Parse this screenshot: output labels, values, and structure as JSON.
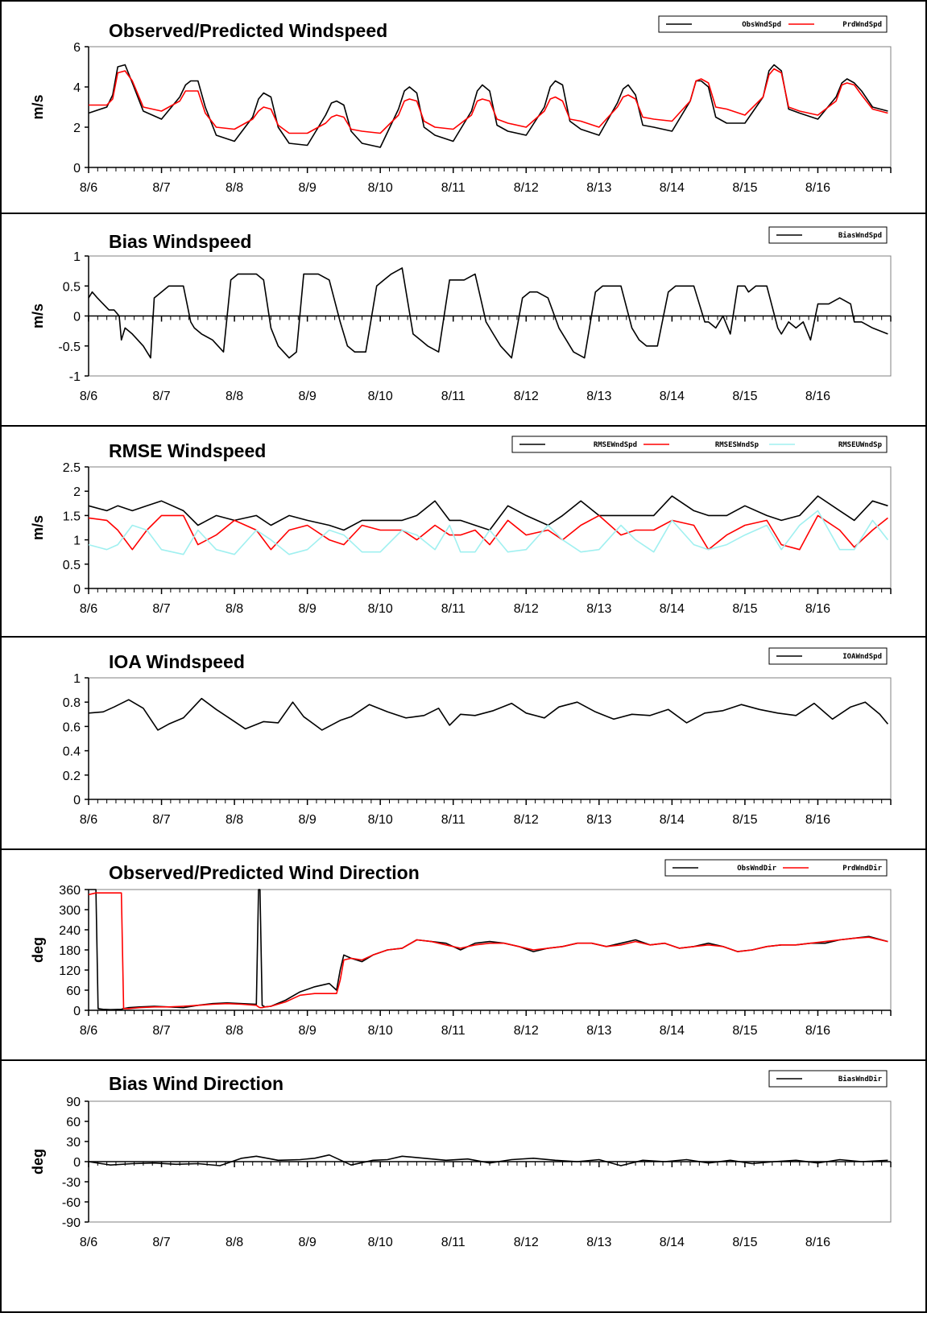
{
  "chart_data": [
    {
      "type": "line",
      "title": "Observed/Predicted Windspeed",
      "ylabel": "m/s",
      "ylim": [
        0,
        6
      ],
      "yticks": [
        "0",
        "2",
        "4",
        "6"
      ],
      "x_tick_labels": [
        "8/6",
        "8/7",
        "8/8",
        "8/9",
        "8/10",
        "8/11",
        "8/12",
        "8/13",
        "8/14",
        "8/15",
        "8/16"
      ],
      "x": [
        0,
        0.25,
        0.33,
        0.4,
        0.5,
        0.6,
        0.75,
        1.0,
        1.25,
        1.33,
        1.4,
        1.5,
        1.6,
        1.75,
        2.0,
        2.25,
        2.33,
        2.4,
        2.5,
        2.6,
        2.75,
        3.0,
        3.25,
        3.33,
        3.4,
        3.5,
        3.6,
        3.75,
        4.0,
        4.25,
        4.33,
        4.4,
        4.5,
        4.6,
        4.75,
        5.0,
        5.25,
        5.33,
        5.4,
        5.5,
        5.6,
        5.75,
        6.0,
        6.25,
        6.33,
        6.4,
        6.5,
        6.6,
        6.75,
        7.0,
        7.25,
        7.33,
        7.4,
        7.5,
        7.6,
        7.75,
        8.0,
        8.25,
        8.33,
        8.4,
        8.5,
        8.6,
        8.75,
        9.0,
        9.25,
        9.33,
        9.4,
        9.5,
        9.6,
        9.75,
        10.0,
        10.25,
        10.33,
        10.4,
        10.5,
        10.6,
        10.75,
        10.96
      ],
      "series": [
        {
          "name": "ObsWndSpd",
          "color": "#000000",
          "values": [
            2.7,
            3.0,
            3.6,
            5.0,
            5.1,
            4.2,
            2.8,
            2.4,
            3.5,
            4.1,
            4.3,
            4.3,
            3.0,
            1.6,
            1.3,
            2.5,
            3.4,
            3.7,
            3.5,
            2.0,
            1.2,
            1.1,
            2.6,
            3.2,
            3.3,
            3.1,
            1.8,
            1.2,
            1.0,
            2.9,
            3.8,
            4.0,
            3.7,
            2.0,
            1.6,
            1.3,
            2.8,
            3.8,
            4.1,
            3.8,
            2.1,
            1.8,
            1.6,
            3.0,
            4.0,
            4.3,
            4.1,
            2.3,
            1.9,
            1.6,
            3.2,
            3.9,
            4.1,
            3.6,
            2.1,
            2.0,
            1.8,
            3.3,
            4.3,
            4.3,
            4.0,
            2.5,
            2.2,
            2.2,
            3.5,
            4.8,
            5.1,
            4.8,
            2.9,
            2.7,
            2.4,
            3.5,
            4.2,
            4.4,
            4.2,
            3.8,
            3.0,
            2.8
          ]
        },
        {
          "name": "PrdWndSpd",
          "color": "#ff0000",
          "values": [
            3.1,
            3.1,
            3.4,
            4.7,
            4.8,
            4.3,
            3.0,
            2.8,
            3.3,
            3.8,
            3.8,
            3.8,
            2.7,
            2.0,
            1.9,
            2.4,
            2.8,
            3.0,
            2.9,
            2.1,
            1.7,
            1.7,
            2.2,
            2.5,
            2.6,
            2.5,
            1.9,
            1.8,
            1.7,
            2.6,
            3.3,
            3.4,
            3.3,
            2.3,
            2.0,
            1.9,
            2.6,
            3.3,
            3.4,
            3.3,
            2.4,
            2.2,
            2.0,
            2.8,
            3.4,
            3.5,
            3.3,
            2.4,
            2.3,
            2.0,
            3.0,
            3.5,
            3.6,
            3.4,
            2.5,
            2.4,
            2.3,
            3.3,
            4.3,
            4.4,
            4.2,
            3.0,
            2.9,
            2.6,
            3.5,
            4.6,
            4.9,
            4.7,
            3.0,
            2.8,
            2.6,
            3.3,
            4.1,
            4.2,
            4.1,
            3.6,
            2.9,
            2.7
          ]
        }
      ]
    },
    {
      "type": "line",
      "title": "Bias Windspeed",
      "ylabel": "m/s",
      "ylim": [
        -1,
        1
      ],
      "yticks": [
        "-1",
        "-0.5",
        "0",
        "0.5",
        "1"
      ],
      "x_tick_labels": [
        "8/6",
        "8/7",
        "8/8",
        "8/9",
        "8/10",
        "8/11",
        "8/12",
        "8/13",
        "8/14",
        "8/15",
        "8/16"
      ],
      "x": [
        0,
        0.05,
        0.12,
        0.2,
        0.28,
        0.35,
        0.42,
        0.45,
        0.5,
        0.6,
        0.75,
        0.85,
        0.9,
        1.0,
        1.1,
        1.3,
        1.4,
        1.45,
        1.55,
        1.7,
        1.85,
        1.95,
        2.05,
        2.15,
        2.3,
        2.4,
        2.5,
        2.6,
        2.75,
        2.85,
        2.95,
        3.05,
        3.15,
        3.3,
        3.45,
        3.55,
        3.65,
        3.8,
        3.95,
        4.05,
        4.15,
        4.3,
        4.45,
        4.55,
        4.65,
        4.8,
        4.95,
        5.05,
        5.15,
        5.3,
        5.45,
        5.55,
        5.65,
        5.8,
        5.95,
        6.05,
        6.15,
        6.3,
        6.45,
        6.55,
        6.65,
        6.8,
        6.95,
        7.05,
        7.15,
        7.3,
        7.45,
        7.55,
        7.65,
        7.8,
        7.95,
        8.05,
        8.15,
        8.3,
        8.45,
        8.5,
        8.6,
        8.7,
        8.8,
        8.9,
        9.0,
        9.05,
        9.15,
        9.3,
        9.45,
        9.5,
        9.6,
        9.7,
        9.8,
        9.9,
        10.0,
        10.05,
        10.15,
        10.3,
        10.45,
        10.5,
        10.6,
        10.75,
        10.96
      ],
      "series": [
        {
          "name": "BiasWndSpd",
          "color": "#000000",
          "values": [
            0.3,
            0.4,
            0.3,
            0.2,
            0.1,
            0.1,
            0.0,
            -0.4,
            -0.2,
            -0.3,
            -0.5,
            -0.7,
            0.3,
            0.4,
            0.5,
            0.5,
            -0.1,
            -0.2,
            -0.3,
            -0.4,
            -0.6,
            0.6,
            0.7,
            0.7,
            0.7,
            0.6,
            -0.2,
            -0.5,
            -0.7,
            -0.6,
            0.7,
            0.7,
            0.7,
            0.6,
            -0.1,
            -0.5,
            -0.6,
            -0.6,
            0.5,
            0.6,
            0.7,
            0.8,
            -0.3,
            -0.4,
            -0.5,
            -0.6,
            0.6,
            0.6,
            0.6,
            0.7,
            -0.1,
            -0.3,
            -0.5,
            -0.7,
            0.3,
            0.4,
            0.4,
            0.3,
            -0.2,
            -0.4,
            -0.6,
            -0.7,
            0.4,
            0.5,
            0.5,
            0.5,
            -0.2,
            -0.4,
            -0.5,
            -0.5,
            0.4,
            0.5,
            0.5,
            0.5,
            -0.1,
            -0.1,
            -0.2,
            0.0,
            -0.3,
            0.5,
            0.5,
            0.4,
            0.5,
            0.5,
            -0.2,
            -0.3,
            -0.1,
            -0.2,
            -0.1,
            -0.4,
            0.2,
            0.2,
            0.2,
            0.3,
            0.2,
            -0.1,
            -0.1,
            -0.2,
            -0.3
          ]
        }
      ]
    },
    {
      "type": "line",
      "title": "RMSE Windspeed",
      "ylabel": "m/s",
      "ylim": [
        0,
        2.5
      ],
      "yticks": [
        "0",
        "0.5",
        "1",
        "1.5",
        "2",
        "2.5"
      ],
      "x_tick_labels": [
        "8/6",
        "8/7",
        "8/8",
        "8/9",
        "8/10",
        "8/11",
        "8/12",
        "8/13",
        "8/14",
        "8/15",
        "8/16"
      ],
      "x": [
        0,
        0.25,
        0.4,
        0.6,
        0.8,
        1.0,
        1.3,
        1.5,
        1.75,
        2.0,
        2.3,
        2.5,
        2.75,
        3.0,
        3.3,
        3.5,
        3.75,
        4.0,
        4.3,
        4.5,
        4.75,
        4.95,
        5.1,
        5.3,
        5.5,
        5.75,
        6.0,
        6.3,
        6.5,
        6.75,
        7.0,
        7.3,
        7.5,
        7.75,
        8.0,
        8.3,
        8.5,
        8.75,
        9.0,
        9.3,
        9.5,
        9.75,
        10.0,
        10.3,
        10.5,
        10.75,
        10.96
      ],
      "series": [
        {
          "name": "RMSEWndSpd",
          "color": "#000000",
          "values": [
            1.7,
            1.6,
            1.7,
            1.6,
            1.7,
            1.8,
            1.6,
            1.3,
            1.5,
            1.4,
            1.5,
            1.3,
            1.5,
            1.4,
            1.3,
            1.2,
            1.4,
            1.4,
            1.4,
            1.5,
            1.8,
            1.4,
            1.4,
            1.3,
            1.2,
            1.7,
            1.5,
            1.3,
            1.5,
            1.8,
            1.5,
            1.5,
            1.5,
            1.5,
            1.9,
            1.6,
            1.5,
            1.5,
            1.7,
            1.5,
            1.4,
            1.5,
            1.9,
            1.6,
            1.4,
            1.8,
            1.7
          ]
        },
        {
          "name": "RMSESWndSp",
          "color": "#ff0000",
          "values": [
            1.45,
            1.4,
            1.2,
            0.8,
            1.2,
            1.5,
            1.5,
            0.9,
            1.1,
            1.4,
            1.2,
            0.8,
            1.2,
            1.3,
            1.0,
            0.9,
            1.3,
            1.2,
            1.2,
            1.0,
            1.3,
            1.1,
            1.1,
            1.2,
            0.9,
            1.4,
            1.1,
            1.2,
            1.0,
            1.3,
            1.5,
            1.1,
            1.2,
            1.2,
            1.4,
            1.3,
            0.8,
            1.1,
            1.3,
            1.4,
            0.9,
            0.8,
            1.5,
            1.2,
            0.85,
            1.2,
            1.45
          ]
        },
        {
          "name": "RMSEUWndSp",
          "color": "#a0f0f0",
          "values": [
            0.9,
            0.8,
            0.9,
            1.3,
            1.2,
            0.8,
            0.7,
            1.2,
            0.8,
            0.7,
            1.2,
            1.0,
            0.7,
            0.8,
            1.2,
            1.1,
            0.75,
            0.75,
            1.2,
            1.1,
            0.8,
            1.3,
            0.75,
            0.75,
            1.2,
            0.75,
            0.8,
            1.3,
            1.0,
            0.75,
            0.8,
            1.3,
            1.0,
            0.75,
            1.4,
            0.9,
            0.8,
            0.9,
            1.1,
            1.3,
            0.8,
            1.3,
            1.6,
            0.8,
            0.8,
            1.4,
            1.0
          ]
        }
      ]
    },
    {
      "type": "line",
      "title": "IOA Windspeed",
      "ylabel": "",
      "ylim": [
        0,
        1
      ],
      "yticks": [
        "0",
        "0.2",
        "0.4",
        "0.6",
        "0.8",
        "1"
      ],
      "x_tick_labels": [
        "8/6",
        "8/7",
        "8/8",
        "8/9",
        "8/10",
        "8/11",
        "8/12",
        "8/13",
        "8/14",
        "8/15",
        "8/16"
      ],
      "x": [
        0,
        0.2,
        0.35,
        0.55,
        0.75,
        0.95,
        1.1,
        1.3,
        1.55,
        1.75,
        1.95,
        2.15,
        2.4,
        2.6,
        2.8,
        2.95,
        3.2,
        3.45,
        3.6,
        3.85,
        4.1,
        4.35,
        4.6,
        4.8,
        4.95,
        5.1,
        5.3,
        5.55,
        5.8,
        6.0,
        6.25,
        6.45,
        6.7,
        6.95,
        7.2,
        7.45,
        7.7,
        7.95,
        8.2,
        8.45,
        8.7,
        8.95,
        9.2,
        9.45,
        9.7,
        9.95,
        10.2,
        10.45,
        10.65,
        10.85,
        10.96
      ],
      "series": [
        {
          "name": "IOAWndSpd",
          "color": "#000000",
          "values": [
            0.71,
            0.72,
            0.76,
            0.82,
            0.75,
            0.57,
            0.62,
            0.67,
            0.83,
            0.74,
            0.66,
            0.58,
            0.64,
            0.63,
            0.8,
            0.68,
            0.57,
            0.65,
            0.68,
            0.78,
            0.72,
            0.67,
            0.69,
            0.75,
            0.61,
            0.7,
            0.69,
            0.73,
            0.79,
            0.71,
            0.67,
            0.76,
            0.8,
            0.72,
            0.66,
            0.7,
            0.69,
            0.74,
            0.63,
            0.71,
            0.73,
            0.78,
            0.74,
            0.71,
            0.69,
            0.79,
            0.66,
            0.76,
            0.8,
            0.7,
            0.62
          ]
        }
      ]
    },
    {
      "type": "line",
      "title": "Observed/Predicted Wind Direction",
      "ylabel": "deg",
      "ylim": [
        0,
        360
      ],
      "yticks": [
        "0",
        "60",
        "120",
        "180",
        "240",
        "300",
        "360"
      ],
      "x_tick_labels": [
        "8/6",
        "8/7",
        "8/8",
        "8/9",
        "8/10",
        "8/11",
        "8/12",
        "8/13",
        "8/14",
        "8/15",
        "8/16"
      ],
      "x": [
        0,
        0.1,
        0.13,
        0.2,
        0.3,
        0.45,
        0.48,
        0.55,
        0.7,
        0.9,
        1.1,
        1.3,
        1.5,
        1.7,
        1.9,
        2.1,
        2.3,
        2.33,
        2.35,
        2.38,
        2.42,
        2.5,
        2.7,
        2.9,
        3.1,
        3.3,
        3.4,
        3.45,
        3.5,
        3.6,
        3.75,
        3.9,
        4.1,
        4.3,
        4.5,
        4.7,
        4.9,
        5.1,
        5.3,
        5.5,
        5.7,
        5.9,
        6.1,
        6.3,
        6.5,
        6.7,
        6.9,
        7.1,
        7.3,
        7.5,
        7.7,
        7.9,
        8.1,
        8.3,
        8.5,
        8.7,
        8.9,
        9.1,
        9.3,
        9.5,
        9.7,
        9.9,
        10.1,
        10.3,
        10.5,
        10.7,
        10.96
      ],
      "series": [
        {
          "name": "ObsWndDir",
          "color": "#000000",
          "values": [
            360,
            360,
            5,
            3,
            2,
            3,
            5,
            8,
            10,
            12,
            10,
            8,
            15,
            20,
            22,
            20,
            18,
            360,
            360,
            15,
            10,
            12,
            30,
            55,
            70,
            80,
            60,
            120,
            165,
            155,
            145,
            165,
            180,
            185,
            210,
            205,
            200,
            180,
            200,
            205,
            200,
            190,
            175,
            185,
            190,
            200,
            200,
            190,
            200,
            210,
            195,
            200,
            185,
            190,
            200,
            190,
            175,
            180,
            190,
            195,
            195,
            200,
            200,
            210,
            215,
            220,
            205
          ]
        },
        {
          "name": "PrdWndDir",
          "color": "#ff0000",
          "values": [
            345,
            350,
            350,
            350,
            350,
            350,
            5,
            5,
            8,
            10,
            10,
            12,
            15,
            18,
            20,
            18,
            15,
            10,
            8,
            8,
            10,
            12,
            25,
            45,
            50,
            50,
            50,
            90,
            150,
            155,
            150,
            165,
            180,
            185,
            210,
            205,
            195,
            185,
            195,
            200,
            200,
            190,
            180,
            185,
            190,
            200,
            200,
            190,
            195,
            205,
            195,
            200,
            185,
            190,
            195,
            190,
            175,
            180,
            190,
            195,
            195,
            200,
            205,
            210,
            215,
            218,
            205
          ]
        }
      ]
    },
    {
      "type": "line",
      "title": "Bias Wind Direction",
      "ylabel": "deg",
      "ylim": [
        -90,
        90
      ],
      "yticks": [
        "-90",
        "-60",
        "-30",
        "0",
        "30",
        "60",
        "90"
      ],
      "x_tick_labels": [
        "8/6",
        "8/7",
        "8/8",
        "8/9",
        "8/10",
        "8/11",
        "8/12",
        "8/13",
        "8/14",
        "8/15",
        "8/16"
      ],
      "x": [
        0,
        0.3,
        0.6,
        0.9,
        1.2,
        1.5,
        1.8,
        2.1,
        2.3,
        2.6,
        2.9,
        3.1,
        3.3,
        3.6,
        3.9,
        4.1,
        4.3,
        4.6,
        4.9,
        5.2,
        5.5,
        5.8,
        6.1,
        6.4,
        6.7,
        7.0,
        7.3,
        7.6,
        7.9,
        8.2,
        8.5,
        8.8,
        9.1,
        9.4,
        9.7,
        10.0,
        10.3,
        10.6,
        10.96
      ],
      "series": [
        {
          "name": "BiasWndDir",
          "color": "#000000",
          "values": [
            0,
            -5,
            -3,
            -2,
            -4,
            -3,
            -6,
            5,
            8,
            2,
            3,
            5,
            10,
            -5,
            2,
            3,
            8,
            5,
            2,
            4,
            -2,
            3,
            5,
            2,
            0,
            3,
            -6,
            2,
            0,
            3,
            -2,
            2,
            -3,
            0,
            2,
            -2,
            3,
            0,
            2
          ]
        }
      ]
    }
  ]
}
